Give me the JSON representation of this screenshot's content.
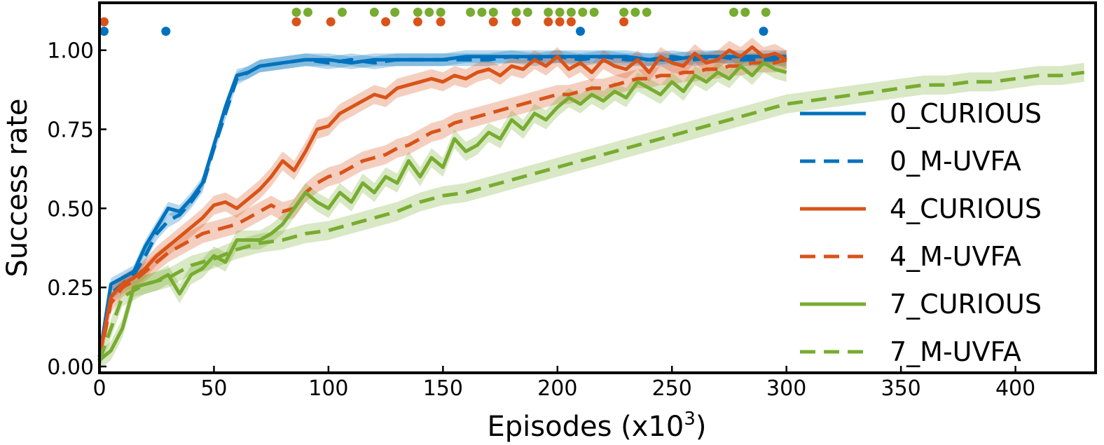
{
  "chart_data": {
    "type": "line",
    "title": "",
    "xlabel": "Episodes (x10",
    "xlabel_sup": "3",
    "xlabel_close": ")",
    "ylabel": "Success rate",
    "xlim": [
      0,
      435
    ],
    "ylim": [
      -0.02,
      1.15
    ],
    "x_ticks": [
      0,
      50,
      100,
      150,
      200,
      250,
      300,
      350,
      400
    ],
    "x_tick_labels": [
      "0",
      "50",
      "100",
      "150",
      "200",
      "250",
      "300",
      "350",
      "400"
    ],
    "y_ticks": [
      0,
      0.25,
      0.5,
      0.75,
      1.0
    ],
    "y_tick_labels": [
      "0.00",
      "0.25",
      "0.50",
      "0.75",
      "1.00"
    ],
    "grid": false,
    "legend_position": "right",
    "series": [
      {
        "name": "0_CURIOUS",
        "color": "#0072BD",
        "dash": "solid",
        "x": [
          0,
          5,
          10,
          15,
          20,
          25,
          30,
          35,
          40,
          45,
          50,
          55,
          60,
          65,
          70,
          80,
          90,
          100,
          110,
          120,
          130,
          140,
          150,
          160,
          170,
          180,
          190,
          200,
          210,
          220,
          230,
          240,
          250,
          260,
          270,
          280,
          290,
          300
        ],
        "y": [
          0.03,
          0.26,
          0.28,
          0.3,
          0.38,
          0.44,
          0.5,
          0.49,
          0.53,
          0.58,
          0.7,
          0.82,
          0.92,
          0.93,
          0.95,
          0.96,
          0.97,
          0.97,
          0.96,
          0.97,
          0.97,
          0.97,
          0.97,
          0.98,
          0.98,
          0.98,
          0.98,
          0.98,
          0.98,
          0.98,
          0.98,
          0.97,
          0.97,
          0.98,
          0.98,
          0.98,
          0.98,
          0.98
        ],
        "band": 0.02
      },
      {
        "name": "0_M-UVFA",
        "color": "#0072BD",
        "dash": "dashed",
        "x": [
          0,
          5,
          10,
          15,
          20,
          25,
          30,
          35,
          40,
          45,
          50,
          55,
          60,
          65,
          70,
          80,
          90,
          100,
          110,
          120,
          130,
          140,
          150,
          160,
          170,
          180,
          190,
          200,
          210,
          220,
          230,
          240,
          250,
          260,
          270,
          280,
          290,
          300
        ],
        "y": [
          0.02,
          0.23,
          0.26,
          0.29,
          0.35,
          0.42,
          0.46,
          0.48,
          0.52,
          0.57,
          0.69,
          0.8,
          0.91,
          0.93,
          0.95,
          0.96,
          0.97,
          0.96,
          0.97,
          0.96,
          0.97,
          0.97,
          0.97,
          0.97,
          0.97,
          0.98,
          0.97,
          0.98,
          0.97,
          0.98,
          0.97,
          0.97,
          0.98,
          0.97,
          0.98,
          0.97,
          0.97,
          0.97
        ],
        "band": 0.02
      },
      {
        "name": "4_CURIOUS",
        "color": "#D95319",
        "dash": "solid",
        "x": [
          0,
          5,
          10,
          15,
          20,
          25,
          30,
          35,
          40,
          45,
          50,
          55,
          60,
          65,
          70,
          75,
          80,
          85,
          90,
          95,
          100,
          105,
          110,
          115,
          120,
          125,
          130,
          135,
          140,
          145,
          150,
          155,
          160,
          165,
          170,
          175,
          180,
          185,
          190,
          195,
          200,
          205,
          210,
          215,
          220,
          225,
          230,
          235,
          240,
          245,
          250,
          255,
          260,
          265,
          270,
          275,
          280,
          285,
          290,
          295,
          300
        ],
        "y": [
          0.03,
          0.22,
          0.26,
          0.28,
          0.31,
          0.35,
          0.38,
          0.41,
          0.44,
          0.47,
          0.51,
          0.52,
          0.5,
          0.53,
          0.56,
          0.6,
          0.65,
          0.62,
          0.68,
          0.75,
          0.76,
          0.8,
          0.82,
          0.84,
          0.86,
          0.85,
          0.88,
          0.89,
          0.9,
          0.91,
          0.9,
          0.92,
          0.91,
          0.93,
          0.94,
          0.92,
          0.95,
          0.94,
          0.97,
          0.95,
          0.98,
          0.94,
          0.96,
          0.93,
          0.97,
          0.95,
          0.94,
          0.97,
          0.93,
          0.98,
          0.96,
          0.95,
          0.99,
          0.96,
          0.97,
          1.0,
          0.98,
          1.01,
          0.98,
          0.99,
          0.97
        ],
        "band": 0.03
      },
      {
        "name": "4_M-UVFA",
        "color": "#D95319",
        "dash": "dashed",
        "x": [
          0,
          5,
          10,
          15,
          20,
          25,
          30,
          35,
          40,
          45,
          50,
          55,
          60,
          65,
          70,
          75,
          80,
          85,
          90,
          95,
          100,
          105,
          110,
          115,
          120,
          125,
          130,
          135,
          140,
          145,
          150,
          155,
          160,
          165,
          170,
          175,
          180,
          185,
          190,
          195,
          200,
          205,
          210,
          215,
          220,
          225,
          230,
          235,
          240,
          245,
          250,
          255,
          260,
          265,
          270,
          275,
          280,
          285,
          290,
          295,
          300
        ],
        "y": [
          0.02,
          0.2,
          0.25,
          0.27,
          0.3,
          0.33,
          0.36,
          0.38,
          0.4,
          0.42,
          0.43,
          0.44,
          0.45,
          0.47,
          0.49,
          0.51,
          0.49,
          0.5,
          0.55,
          0.58,
          0.6,
          0.61,
          0.63,
          0.65,
          0.66,
          0.67,
          0.69,
          0.7,
          0.72,
          0.74,
          0.75,
          0.77,
          0.78,
          0.79,
          0.8,
          0.81,
          0.82,
          0.83,
          0.84,
          0.85,
          0.86,
          0.86,
          0.87,
          0.88,
          0.88,
          0.89,
          0.9,
          0.91,
          0.91,
          0.92,
          0.92,
          0.93,
          0.93,
          0.94,
          0.94,
          0.95,
          0.95,
          0.96,
          0.96,
          0.96,
          0.97
        ],
        "band": 0.03
      },
      {
        "name": "7_CURIOUS",
        "color": "#77AC30",
        "dash": "solid",
        "x": [
          0,
          5,
          10,
          15,
          20,
          25,
          30,
          35,
          40,
          45,
          50,
          55,
          60,
          65,
          70,
          75,
          80,
          85,
          90,
          95,
          100,
          105,
          110,
          115,
          120,
          125,
          130,
          135,
          140,
          145,
          150,
          155,
          160,
          165,
          170,
          175,
          180,
          185,
          190,
          195,
          200,
          205,
          210,
          215,
          220,
          225,
          230,
          235,
          240,
          245,
          250,
          255,
          260,
          265,
          270,
          275,
          280,
          285,
          290,
          295,
          300
        ],
        "y": [
          0.02,
          0.05,
          0.12,
          0.25,
          0.26,
          0.27,
          0.29,
          0.23,
          0.29,
          0.31,
          0.35,
          0.33,
          0.4,
          0.4,
          0.4,
          0.42,
          0.45,
          0.5,
          0.55,
          0.52,
          0.5,
          0.55,
          0.52,
          0.58,
          0.55,
          0.6,
          0.58,
          0.65,
          0.6,
          0.66,
          0.63,
          0.72,
          0.68,
          0.7,
          0.74,
          0.72,
          0.78,
          0.75,
          0.8,
          0.78,
          0.82,
          0.85,
          0.83,
          0.86,
          0.84,
          0.87,
          0.85,
          0.9,
          0.88,
          0.86,
          0.9,
          0.87,
          0.92,
          0.9,
          0.93,
          0.91,
          0.95,
          0.92,
          0.96,
          0.94,
          0.93
        ],
        "band": 0.03
      },
      {
        "name": "7_M-UVFA",
        "color": "#77AC30",
        "dash": "dashed",
        "x": [
          0,
          10,
          20,
          30,
          40,
          50,
          60,
          70,
          80,
          90,
          100,
          110,
          120,
          130,
          140,
          150,
          160,
          170,
          180,
          190,
          200,
          210,
          220,
          230,
          240,
          250,
          260,
          270,
          280,
          290,
          300,
          310,
          320,
          330,
          340,
          350,
          360,
          370,
          380,
          390,
          400,
          410,
          420,
          430
        ],
        "y": [
          0.02,
          0.22,
          0.26,
          0.28,
          0.32,
          0.34,
          0.37,
          0.39,
          0.4,
          0.42,
          0.43,
          0.45,
          0.47,
          0.49,
          0.52,
          0.54,
          0.55,
          0.57,
          0.59,
          0.61,
          0.63,
          0.65,
          0.67,
          0.69,
          0.71,
          0.73,
          0.75,
          0.77,
          0.79,
          0.81,
          0.83,
          0.84,
          0.85,
          0.86,
          0.87,
          0.88,
          0.89,
          0.89,
          0.9,
          0.9,
          0.91,
          0.92,
          0.92,
          0.93
        ],
        "band": 0.03
      }
    ],
    "significance_markers": [
      {
        "series": "0_CURIOUS",
        "row": 1.06,
        "x": [
          2,
          29,
          210,
          290
        ]
      },
      {
        "series": "4_CURIOUS",
        "row": 1.09,
        "x": [
          2,
          86,
          101,
          125,
          139,
          149,
          172,
          182,
          196,
          201,
          206,
          229
        ]
      },
      {
        "series": "7_CURIOUS",
        "row": 1.12,
        "x": [
          86,
          91,
          106,
          120,
          129,
          139,
          144,
          149,
          162,
          167,
          172,
          182,
          187,
          196,
          201,
          206,
          211,
          216,
          229,
          234,
          239,
          277,
          282,
          291
        ]
      }
    ]
  }
}
